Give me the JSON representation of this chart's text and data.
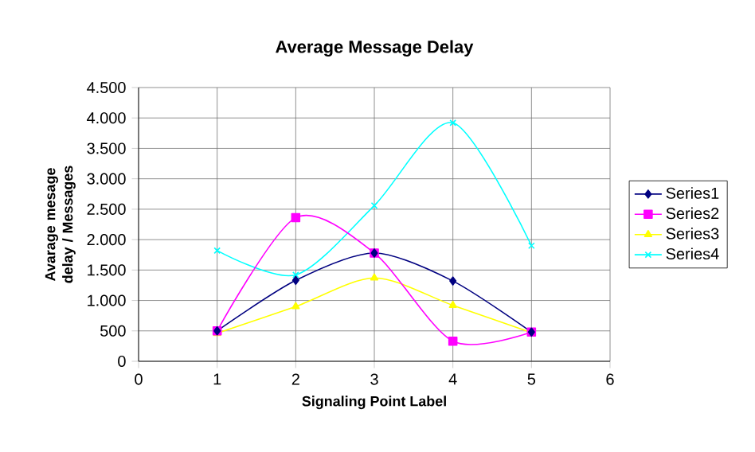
{
  "chart_data": {
    "type": "line",
    "title": "Average Message Delay",
    "xlabel": "Signaling Point Label",
    "ylabel": "Avarage mesage delay / Messages",
    "x": [
      1,
      2,
      3,
      4,
      5
    ],
    "xlim": [
      0,
      6
    ],
    "xticks": [
      0,
      1,
      2,
      3,
      4,
      5,
      6
    ],
    "ylim": [
      0,
      4500
    ],
    "yticks": [
      0,
      500,
      {
        "value": 1000,
        "label": "1.000"
      },
      {
        "value": 1500,
        "label": "1.500"
      },
      {
        "value": 2000,
        "label": "2.000"
      },
      {
        "value": 2500,
        "label": "2.500"
      },
      {
        "value": 3000,
        "label": "3.000"
      },
      {
        "value": 3500,
        "label": "3.500"
      },
      {
        "value": 4000,
        "label": "4.000"
      },
      {
        "value": 4500,
        "label": "4.500"
      }
    ],
    "grid": true,
    "legend": "right",
    "series": [
      {
        "name": "Series1",
        "color": "#000080",
        "marker": "diamond",
        "values": [
          500,
          1330,
          1780,
          1320,
          480
        ]
      },
      {
        "name": "Series2",
        "color": "#ff00ff",
        "marker": "square",
        "values": [
          500,
          2360,
          1780,
          330,
          480
        ]
      },
      {
        "name": "Series3",
        "color": "#ffff00",
        "marker": "triangle",
        "values": [
          460,
          900,
          1370,
          920,
          470
        ]
      },
      {
        "name": "Series4",
        "color": "#00ffff",
        "marker": "cross",
        "values": [
          1820,
          1420,
          2560,
          3920,
          1900
        ]
      }
    ]
  }
}
